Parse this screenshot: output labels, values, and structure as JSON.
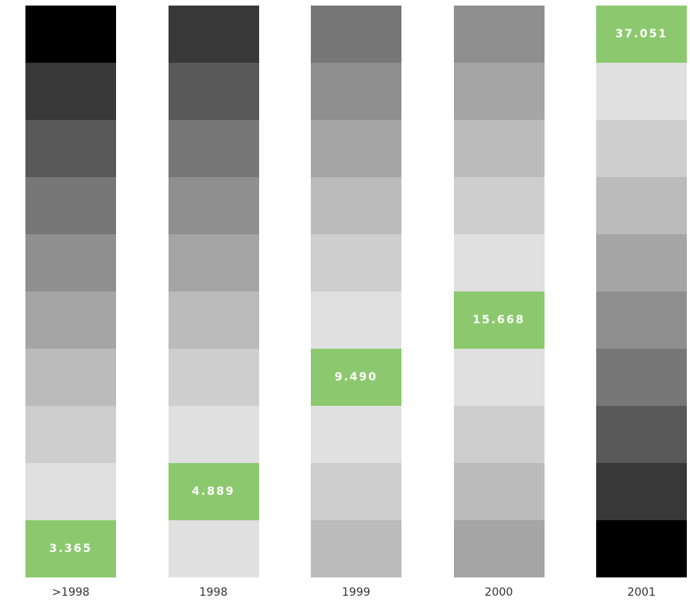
{
  "highlight_color": "#8cc96e",
  "columns": [
    {
      "label": ">1998",
      "value": "3.365",
      "colors": [
        "#000000",
        "#383838",
        "#595959",
        "#777777",
        "#8f8f8f",
        "#a5a5a5",
        "#bbbbbb",
        "#cecece",
        "#e0e0e0",
        "#8cc96e"
      ]
    },
    {
      "label": "1998",
      "value": "4.889",
      "colors": [
        "#383838",
        "#595959",
        "#777777",
        "#8f8f8f",
        "#a5a5a5",
        "#bbbbbb",
        "#cecece",
        "#e0e0e0",
        "#8cc96e",
        "#e0e0e0"
      ]
    },
    {
      "label": "1999",
      "value": "9.490",
      "colors": [
        "#777777",
        "#8f8f8f",
        "#a5a5a5",
        "#bbbbbb",
        "#cecece",
        "#e0e0e0",
        "#8cc96e",
        "#e0e0e0",
        "#cecece",
        "#bbbbbb"
      ]
    },
    {
      "label": "2000",
      "value": "15.668",
      "colors": [
        "#8f8f8f",
        "#a5a5a5",
        "#bbbbbb",
        "#cecece",
        "#e0e0e0",
        "#8cc96e",
        "#e0e0e0",
        "#cecece",
        "#bbbbbb",
        "#a5a5a5"
      ]
    },
    {
      "label": "2001",
      "value": "37.051",
      "colors": [
        "#8cc96e",
        "#e0e0e0",
        "#cecece",
        "#bbbbbb",
        "#a5a5a5",
        "#8f8f8f",
        "#777777",
        "#595959",
        "#383838",
        "#000000"
      ]
    }
  ]
}
